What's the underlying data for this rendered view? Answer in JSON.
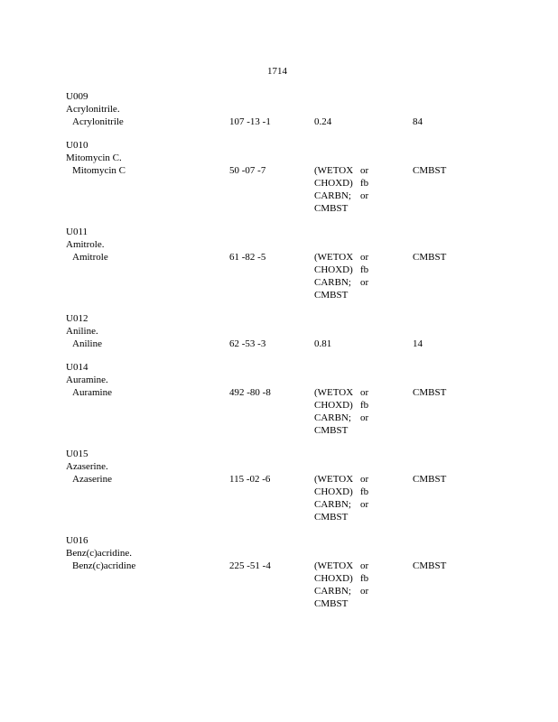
{
  "page_number": "1714",
  "entries": [
    {
      "code": "U009",
      "name": "Acrylonitrile.",
      "constituent": "Acrylonitrile",
      "cas": "107 -13 -1",
      "wastewater": [
        [
          "0.24",
          ""
        ]
      ],
      "nonwastewater": "84"
    },
    {
      "code": "U010",
      "name": "Mitomycin    C.",
      "constituent": "Mitomycin     C",
      "cas": "50 -07 -7",
      "wastewater": [
        [
          "(WETOX",
          "or"
        ],
        [
          "CHOXD)",
          "fb"
        ],
        [
          "CARBN;",
          "or"
        ],
        [
          "CMBST",
          ""
        ]
      ],
      "nonwastewater": "CMBST"
    },
    {
      "code": "U011",
      "name": "Amitrole.",
      "constituent": "Amitrole",
      "cas": "61 -82 -5",
      "wastewater": [
        [
          "(WETOX",
          "or"
        ],
        [
          "CHOXD)",
          "fb"
        ],
        [
          "CARBN;",
          "or"
        ],
        [
          "CMBST",
          ""
        ]
      ],
      "nonwastewater": "CMBST"
    },
    {
      "code": "U012",
      "name": "Aniline.",
      "constituent": "Aniline",
      "cas": "62 -53 -3",
      "wastewater": [
        [
          "0.81",
          ""
        ]
      ],
      "nonwastewater": "14"
    },
    {
      "code": "U014",
      "name": "Auramine.",
      "constituent": "Auramine",
      "cas": "492 -80 -8",
      "wastewater": [
        [
          "(WETOX",
          "or"
        ],
        [
          "CHOXD)",
          "fb"
        ],
        [
          "CARBN;",
          "or"
        ],
        [
          "CMBST",
          ""
        ]
      ],
      "nonwastewater": "CMBST"
    },
    {
      "code": "U015",
      "name": "Azaserine.",
      "constituent": "Azaserine",
      "cas": "115 -02 -6",
      "wastewater": [
        [
          "(WETOX",
          "or"
        ],
        [
          "CHOXD)",
          "fb"
        ],
        [
          "CARBN;",
          "or"
        ],
        [
          "CMBST",
          ""
        ]
      ],
      "nonwastewater": "CMBST"
    },
    {
      "code": "U016",
      "name": "Benz(c)acridine.",
      "constituent": "Benz(c)acridine",
      "cas": "225 -51 -4",
      "wastewater": [
        [
          "(WETOX",
          "or"
        ],
        [
          "CHOXD)",
          "fb"
        ],
        [
          "CARBN;",
          "or"
        ],
        [
          "CMBST",
          ""
        ]
      ],
      "nonwastewater": "CMBST"
    }
  ]
}
